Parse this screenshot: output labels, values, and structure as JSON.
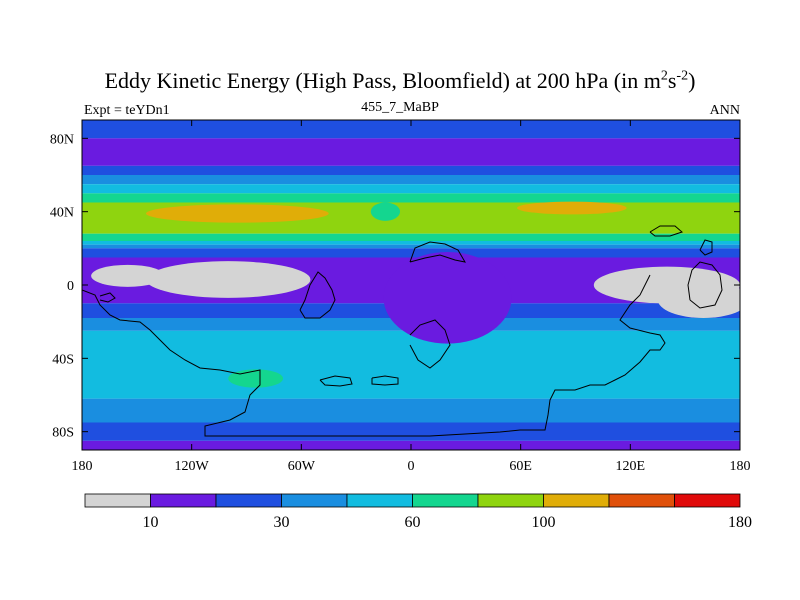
{
  "title": {
    "main": "Eddy Kinetic Energy (High Pass, Bloomfield) at 200 hPa (in m",
    "sup1": "2",
    "mid": "s",
    "sup2": "-2",
    "end": ")"
  },
  "subtitle_left": "Expt = teYDn1",
  "subtitle_center": "455_7_MaBP",
  "subtitle_right": "ANN",
  "chart_data": {
    "type": "heatmap",
    "description_field": "eddy kinetic energy, filled contours",
    "x_ticks": [
      {
        "value": -180,
        "label": "180"
      },
      {
        "value": -120,
        "label": "120W"
      },
      {
        "value": -60,
        "label": "60W"
      },
      {
        "value": 0,
        "label": "0"
      },
      {
        "value": 60,
        "label": "60E"
      },
      {
        "value": 120,
        "label": "120E"
      },
      {
        "value": 180,
        "label": "180"
      }
    ],
    "y_ticks": [
      {
        "value": 80,
        "label": "80N"
      },
      {
        "value": 40,
        "label": "40N"
      },
      {
        "value": 0,
        "label": "0"
      },
      {
        "value": -40,
        "label": "40S"
      },
      {
        "value": -80,
        "label": "80S"
      }
    ],
    "xlim": [
      -180,
      180
    ],
    "ylim": [
      -90,
      90
    ],
    "levels": [
      10,
      20,
      30,
      40,
      60,
      80,
      100,
      120,
      140,
      180
    ],
    "colorbar_labels": [
      {
        "level": 10,
        "label": "10"
      },
      {
        "level": 30,
        "label": "30"
      },
      {
        "level": 60,
        "label": "60"
      },
      {
        "level": 100,
        "label": "100"
      },
      {
        "level": 180,
        "label": "180"
      }
    ],
    "colors": [
      "#d4d4d4",
      "#6a1be0",
      "#1f4fe0",
      "#1a8ee0",
      "#12bce0",
      "#14d68f",
      "#8fd40f",
      "#e0ad08",
      "#e0500a",
      "#e00a0a"
    ],
    "bands": [
      {
        "lat_range": [
          80,
          90
        ],
        "level_index": 2
      },
      {
        "lat_range": [
          65,
          80
        ],
        "level_index": 1
      },
      {
        "lat_range": [
          60,
          65
        ],
        "level_index": 2
      },
      {
        "lat_range": [
          55,
          60
        ],
        "level_index": 3
      },
      {
        "lat_range": [
          50,
          55
        ],
        "level_index": 4
      },
      {
        "lat_range": [
          45,
          50
        ],
        "level_index": 5
      },
      {
        "lat_range": [
          28,
          45
        ],
        "level_index": 6
      },
      {
        "lat_range": [
          24,
          28
        ],
        "level_index": 5
      },
      {
        "lat_range": [
          22,
          24
        ],
        "level_index": 4
      },
      {
        "lat_range": [
          20,
          22
        ],
        "level_index": 3
      },
      {
        "lat_range": [
          15,
          20
        ],
        "level_index": 2
      },
      {
        "lat_range": [
          -10,
          15
        ],
        "level_index": 1
      },
      {
        "lat_range": [
          -18,
          -10
        ],
        "level_index": 2
      },
      {
        "lat_range": [
          -25,
          -18
        ],
        "level_index": 3
      },
      {
        "lat_range": [
          -45,
          -25
        ],
        "level_index": 4
      },
      {
        "lat_range": [
          -62,
          -45
        ],
        "level_index": 4
      },
      {
        "lat_range": [
          -75,
          -62
        ],
        "level_index": 3
      },
      {
        "lat_range": [
          -85,
          -75
        ],
        "level_index": 2
      },
      {
        "lat_range": [
          -90,
          -85
        ],
        "level_index": 1
      }
    ],
    "patches": [
      {
        "center": [
          -95,
          39
        ],
        "radius": [
          50,
          5
        ],
        "level_index": 7
      },
      {
        "center": [
          88,
          42
        ],
        "radius": [
          30,
          3.5
        ],
        "level_index": 7
      },
      {
        "center": [
          -14,
          40
        ],
        "radius": [
          8,
          5
        ],
        "level_index": 5
      },
      {
        "center": [
          -85,
          -51
        ],
        "radius": [
          15,
          5
        ],
        "level_index": 5
      },
      {
        "center": [
          20,
          -7
        ],
        "radius": [
          35,
          25
        ],
        "level_index": 1
      },
      {
        "center": [
          -155,
          5
        ],
        "radius": [
          20,
          6
        ],
        "level_index": 0
      },
      {
        "center": [
          -100,
          3
        ],
        "radius": [
          45,
          10
        ],
        "level_index": 0
      },
      {
        "center": [
          140,
          0
        ],
        "radius": [
          40,
          10
        ],
        "level_index": 0
      },
      {
        "center": [
          160,
          -8
        ],
        "radius": [
          25,
          10
        ],
        "level_index": 0
      }
    ]
  }
}
